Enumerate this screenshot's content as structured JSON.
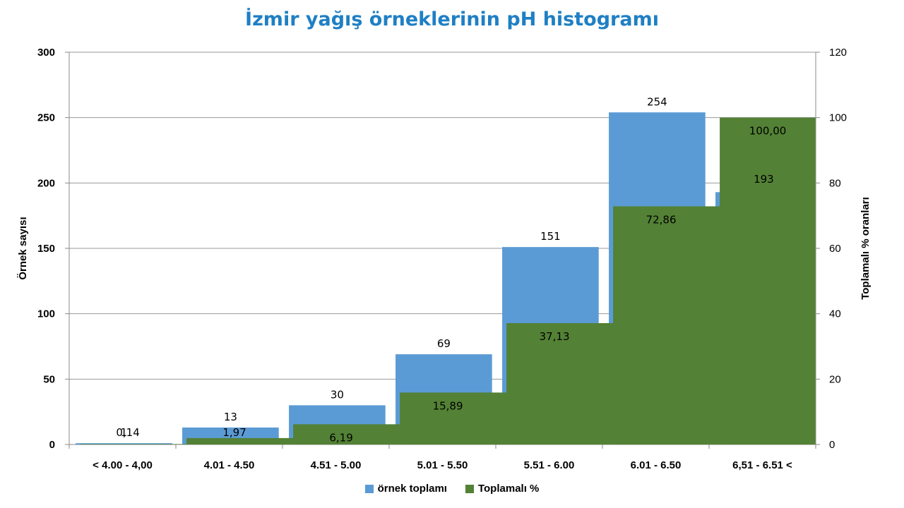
{
  "chart_data": {
    "type": "bar",
    "title": "İzmir yağış örneklerinin pH histogramı",
    "ylabel": "Örnek sayısı",
    "y2label": "Toplamalı  % oranları",
    "categories": [
      "< 4.00 - 4,00",
      "4.01 - 4.50",
      "4.51 - 5.00",
      "5.01 - 5.50",
      "5.51 - 6.00",
      "6.01 - 6.50",
      "6,51 - 6.51 <"
    ],
    "series": [
      {
        "name": "örnek toplamı",
        "axis": "left",
        "color": "#5b9bd5",
        "values": [
          1,
          13,
          30,
          69,
          151,
          254,
          193
        ],
        "labels": [
          "1",
          "13",
          "30",
          "69",
          "151",
          "254",
          "193"
        ]
      },
      {
        "name": "Toplamalı %",
        "axis": "right",
        "color": "#538135",
        "values": [
          0.14,
          1.97,
          6.19,
          15.89,
          37.13,
          72.86,
          100.0
        ],
        "labels": [
          "0,14",
          "1,97",
          "6,19",
          "15,89",
          "37,13",
          "72,86",
          "100,00"
        ]
      }
    ],
    "ylim": [
      0,
      300
    ],
    "yticks": [
      "0",
      "50",
      "100",
      "150",
      "200",
      "250",
      "300"
    ],
    "y2lim": [
      0,
      120
    ],
    "y2ticks": [
      "0",
      "20",
      "40",
      "60",
      "80",
      "100",
      "120"
    ],
    "grid": true,
    "legend": "bottom"
  }
}
